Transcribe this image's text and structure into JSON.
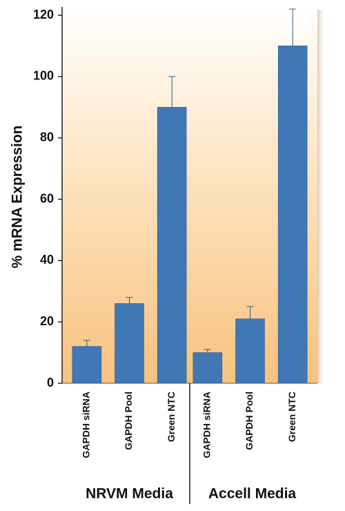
{
  "chart_data": {
    "type": "bar",
    "ylabel": "% mRNA Expression",
    "categories": [
      "GAPDH siRNA",
      "GAPDH Pool",
      "Green NTC",
      "GAPDH siRNA",
      "GAPDH Pool",
      "Green NTC"
    ],
    "groups": [
      "NRVM Media",
      "Accell Media"
    ],
    "values": [
      12,
      26,
      90,
      10,
      21,
      110
    ],
    "errors": [
      2,
      2,
      10,
      1,
      4,
      12
    ],
    "color": "#3f78b5",
    "ylim": [
      0,
      120
    ],
    "yticks": [
      0,
      20,
      40,
      60,
      80,
      100,
      120
    ]
  }
}
